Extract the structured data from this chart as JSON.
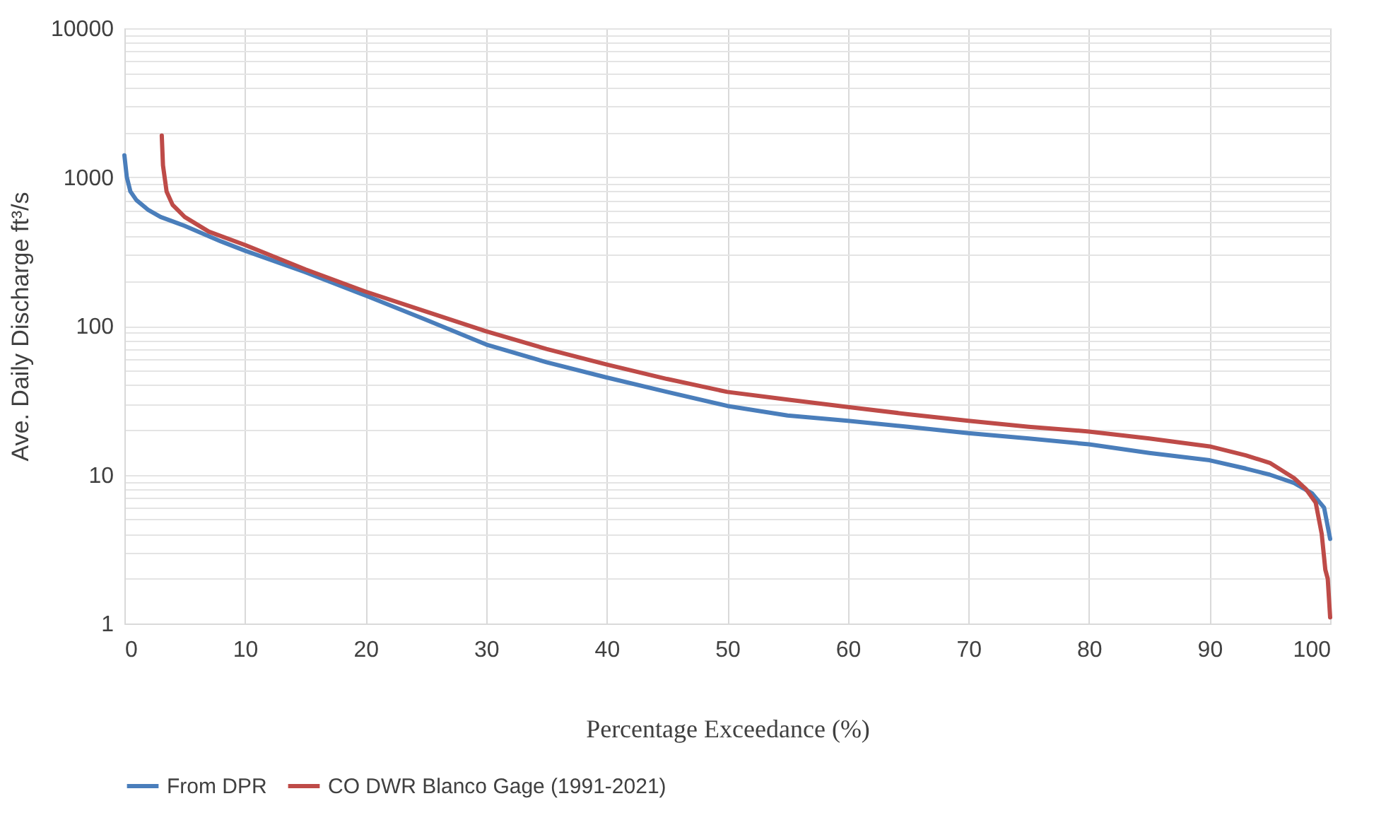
{
  "chart_data": {
    "type": "line",
    "xlabel": "Percentage Exceedance  (%)",
    "ylabel": "Ave. Daily Discharge    ft³/s",
    "log": "y",
    "grid": true,
    "legend": "bottom",
    "line_style": "solid",
    "marker": "none",
    "xlim": [
      0,
      100
    ],
    "xticks": [
      0,
      10,
      20,
      30,
      40,
      50,
      60,
      70,
      80,
      90,
      100
    ],
    "ylim": [
      1,
      10000
    ],
    "yticks": [
      1,
      {
        "value": 2,
        "label": null
      },
      {
        "value": 3,
        "label": null
      },
      {
        "value": 4,
        "label": null
      },
      {
        "value": 5,
        "label": null
      },
      {
        "value": 6,
        "label": null
      },
      {
        "value": 7,
        "label": null
      },
      {
        "value": 8,
        "label": null
      },
      {
        "value": 9,
        "label": null
      },
      10,
      {
        "value": 20,
        "label": null
      },
      {
        "value": 30,
        "label": null
      },
      {
        "value": 40,
        "label": null
      },
      {
        "value": 50,
        "label": null
      },
      {
        "value": 60,
        "label": null
      },
      {
        "value": 70,
        "label": null
      },
      {
        "value": 80,
        "label": null
      },
      {
        "value": 90,
        "label": null
      },
      100,
      {
        "value": 200,
        "label": null
      },
      {
        "value": 300,
        "label": null
      },
      {
        "value": 400,
        "label": null
      },
      {
        "value": 500,
        "label": null
      },
      {
        "value": 600,
        "label": null
      },
      {
        "value": 700,
        "label": null
      },
      {
        "value": 800,
        "label": null
      },
      {
        "value": 900,
        "label": null
      },
      1000,
      {
        "value": 2000,
        "label": null
      },
      {
        "value": 3000,
        "label": null
      },
      {
        "value": 4000,
        "label": null
      },
      {
        "value": 5000,
        "label": null
      },
      {
        "value": 6000,
        "label": null
      },
      {
        "value": 7000,
        "label": null
      },
      {
        "value": 8000,
        "label": null
      },
      {
        "value": 9000,
        "label": null
      },
      10000
    ],
    "series": [
      {
        "name": "From  DPR",
        "color": "#4a7ebb",
        "x": [
          0,
          0.2,
          0.5,
          1,
          2,
          3,
          5,
          8,
          10,
          15,
          20,
          25,
          30,
          35,
          40,
          45,
          50,
          55,
          60,
          65,
          70,
          75,
          80,
          85,
          90,
          93,
          95,
          97,
          98.5,
          99.5,
          100
        ],
        "values": [
          1400,
          1000,
          800,
          700,
          600,
          540,
          470,
          370,
          320,
          230,
          160,
          110,
          75,
          57,
          45,
          36,
          29,
          25,
          23,
          21,
          19,
          17.5,
          16,
          14,
          12.5,
          11,
          10,
          8.8,
          7.5,
          6,
          3.7
        ]
      },
      {
        "name": "CO  DWR  Blanco  Gage  (1991-2021)",
        "color": "#be4b48",
        "x": [
          3.1,
          3.2,
          3.5,
          4,
          5,
          7,
          10,
          15,
          20,
          25,
          30,
          35,
          40,
          45,
          50,
          55,
          60,
          65,
          70,
          75,
          80,
          85,
          90,
          93,
          95,
          97,
          98,
          98.8,
          99.3,
          99.6,
          99.8,
          100
        ],
        "values": [
          1900,
          1200,
          800,
          650,
          540,
          430,
          350,
          240,
          170,
          125,
          92,
          70,
          55,
          44,
          36,
          32,
          28.5,
          25.5,
          23,
          21,
          19.5,
          17.5,
          15.5,
          13.5,
          12,
          9.5,
          8,
          6.5,
          4,
          2.3,
          2,
          1.1
        ]
      }
    ]
  }
}
